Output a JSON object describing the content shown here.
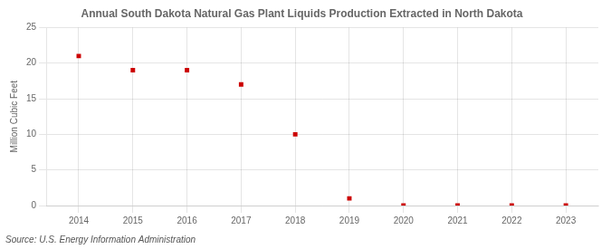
{
  "chart_data": {
    "type": "scatter",
    "title": "Annual South Dakota Natural Gas Plant Liquids Production Extracted in North Dakota",
    "y_label": "Million Cubic Feet",
    "source": "Source: U.S. Energy Information Administration",
    "x": [
      2014,
      2015,
      2016,
      2017,
      2018,
      2019,
      2020,
      2021,
      2022,
      2023
    ],
    "values": [
      21.0,
      19.0,
      19.0,
      17.0,
      10.0,
      1.0,
      0.0,
      0.0,
      0.0,
      0.0
    ],
    "xlim": [
      2013.4,
      2023.6
    ],
    "xticks": [
      2014,
      2015,
      2016,
      2017,
      2018,
      2019,
      2020,
      2021,
      2022,
      2023
    ],
    "ylim": [
      0,
      25
    ],
    "yticks": [
      0,
      5,
      10,
      15,
      20,
      25
    ],
    "color": "#cc0000",
    "marker": "square",
    "grid": true
  }
}
